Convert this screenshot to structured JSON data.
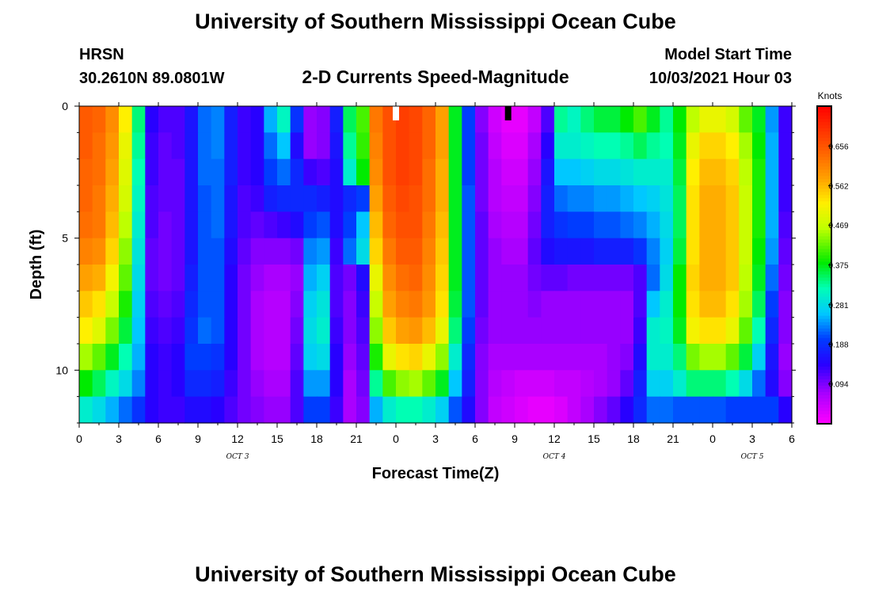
{
  "header": {
    "title": "University of Southern Mississippi Ocean Cube",
    "station": "HRSN",
    "coords": "30.2610N  89.0801W",
    "subtitle": "2-D Currents Speed-Magnitude",
    "model_start_label": "Model Start Time",
    "model_start_value": "10/03/2021 Hour 03",
    "footer_title": "University of Southern Mississippi Ocean Cube"
  },
  "chart_data": {
    "type": "heatmap",
    "xlabel": "Forecast Time(Z)",
    "ylabel": "Depth (ft)",
    "x_tick_labels": [
      "0",
      "3",
      "6",
      "9",
      "12",
      "15",
      "18",
      "21",
      "0",
      "3",
      "6",
      "9",
      "12",
      "15",
      "18",
      "21",
      "0",
      "3",
      "6"
    ],
    "x_range_hours": [
      0,
      54
    ],
    "day_labels": [
      {
        "text": "OCT 3",
        "hour": 12
      },
      {
        "text": "OCT 4",
        "hour": 36
      },
      {
        "text": "OCT 5",
        "hour": 51
      }
    ],
    "y_tick_labels": [
      "0",
      "5",
      "10"
    ],
    "y_tick_values": [
      0,
      5,
      10
    ],
    "y_range_ft": [
      0,
      12
    ],
    "y_reversed": true,
    "colorbar": {
      "units": "Knots",
      "tick_labels": [
        "0.656",
        "0.562",
        "0.469",
        "0.375",
        "0.281",
        "0.188",
        "0.094"
      ],
      "tick_values": [
        0.656,
        0.562,
        0.469,
        0.375,
        0.281,
        0.188,
        0.094
      ],
      "range": [
        0.0,
        0.75
      ]
    },
    "markers": [
      {
        "hour": 24,
        "color": "#ffffff"
      },
      {
        "hour": 32.5,
        "color": "#000000"
      }
    ],
    "time_hours": [
      0,
      1,
      2,
      3,
      4,
      5,
      6,
      7,
      8,
      9,
      10,
      11,
      12,
      13,
      14,
      15,
      16,
      17,
      18,
      19,
      20,
      21,
      22,
      23,
      24,
      25,
      26,
      27,
      28,
      29,
      30,
      31,
      32,
      33,
      34,
      35,
      36,
      37,
      38,
      39,
      40,
      41,
      42,
      43,
      44,
      45,
      46,
      47,
      48,
      49,
      50,
      51,
      52,
      53
    ],
    "depth_ft": [
      0.5,
      1.5,
      2.5,
      3.5,
      4.5,
      5.5,
      6.5,
      7.5,
      8.5,
      9.5,
      10.5,
      11.5
    ],
    "speed_knots": [
      [
        0.65,
        0.64,
        0.6,
        0.52,
        0.34,
        0.14,
        0.12,
        0.12,
        0.16,
        0.22,
        0.23,
        0.17,
        0.13,
        0.14,
        0.25,
        0.31,
        0.19,
        0.08,
        0.09,
        0.17,
        0.35,
        0.41,
        0.62,
        0.66,
        0.68,
        0.67,
        0.64,
        0.58,
        0.37,
        0.2,
        0.09,
        0.04,
        0.02,
        0.02,
        0.05,
        0.12,
        0.33,
        0.31,
        0.34,
        0.36,
        0.36,
        0.38,
        0.41,
        0.37,
        0.33,
        0.38,
        0.46,
        0.5,
        0.5,
        0.48,
        0.42,
        0.37,
        0.24,
        0.13
      ],
      [
        0.65,
        0.63,
        0.59,
        0.5,
        0.33,
        0.13,
        0.11,
        0.12,
        0.16,
        0.22,
        0.23,
        0.17,
        0.13,
        0.14,
        0.22,
        0.26,
        0.15,
        0.08,
        0.09,
        0.16,
        0.33,
        0.4,
        0.61,
        0.66,
        0.68,
        0.67,
        0.64,
        0.58,
        0.37,
        0.2,
        0.1,
        0.05,
        0.03,
        0.03,
        0.07,
        0.14,
        0.3,
        0.3,
        0.31,
        0.32,
        0.32,
        0.33,
        0.35,
        0.33,
        0.32,
        0.37,
        0.5,
        0.54,
        0.54,
        0.52,
        0.45,
        0.38,
        0.25,
        0.13
      ],
      [
        0.64,
        0.63,
        0.58,
        0.49,
        0.32,
        0.13,
        0.11,
        0.11,
        0.16,
        0.22,
        0.22,
        0.17,
        0.13,
        0.14,
        0.2,
        0.22,
        0.18,
        0.13,
        0.12,
        0.15,
        0.3,
        0.38,
        0.6,
        0.66,
        0.68,
        0.67,
        0.63,
        0.57,
        0.37,
        0.2,
        0.1,
        0.06,
        0.04,
        0.04,
        0.08,
        0.16,
        0.26,
        0.26,
        0.27,
        0.28,
        0.28,
        0.29,
        0.3,
        0.3,
        0.3,
        0.36,
        0.52,
        0.56,
        0.56,
        0.54,
        0.46,
        0.39,
        0.25,
        0.13
      ],
      [
        0.64,
        0.62,
        0.57,
        0.48,
        0.31,
        0.12,
        0.11,
        0.11,
        0.16,
        0.21,
        0.22,
        0.16,
        0.12,
        0.13,
        0.17,
        0.18,
        0.18,
        0.18,
        0.17,
        0.15,
        0.18,
        0.2,
        0.58,
        0.65,
        0.67,
        0.66,
        0.63,
        0.57,
        0.37,
        0.21,
        0.1,
        0.06,
        0.05,
        0.05,
        0.09,
        0.17,
        0.22,
        0.23,
        0.23,
        0.24,
        0.24,
        0.25,
        0.26,
        0.27,
        0.29,
        0.35,
        0.53,
        0.57,
        0.57,
        0.55,
        0.47,
        0.39,
        0.25,
        0.13
      ],
      [
        0.63,
        0.62,
        0.56,
        0.46,
        0.3,
        0.12,
        0.1,
        0.11,
        0.16,
        0.21,
        0.22,
        0.16,
        0.12,
        0.11,
        0.12,
        0.13,
        0.15,
        0.2,
        0.21,
        0.15,
        0.2,
        0.26,
        0.56,
        0.64,
        0.66,
        0.66,
        0.62,
        0.56,
        0.37,
        0.21,
        0.11,
        0.07,
        0.06,
        0.06,
        0.1,
        0.17,
        0.19,
        0.2,
        0.2,
        0.21,
        0.21,
        0.22,
        0.23,
        0.25,
        0.28,
        0.35,
        0.53,
        0.57,
        0.57,
        0.55,
        0.47,
        0.39,
        0.25,
        0.12
      ],
      [
        0.61,
        0.6,
        0.54,
        0.44,
        0.29,
        0.11,
        0.1,
        0.11,
        0.16,
        0.21,
        0.21,
        0.15,
        0.11,
        0.09,
        0.09,
        0.09,
        0.1,
        0.23,
        0.24,
        0.13,
        0.22,
        0.28,
        0.54,
        0.62,
        0.65,
        0.65,
        0.61,
        0.55,
        0.37,
        0.21,
        0.11,
        0.08,
        0.07,
        0.07,
        0.11,
        0.15,
        0.16,
        0.16,
        0.16,
        0.17,
        0.17,
        0.17,
        0.19,
        0.23,
        0.27,
        0.36,
        0.53,
        0.57,
        0.57,
        0.55,
        0.47,
        0.38,
        0.24,
        0.11
      ],
      [
        0.58,
        0.57,
        0.51,
        0.42,
        0.28,
        0.11,
        0.1,
        0.11,
        0.17,
        0.21,
        0.21,
        0.14,
        0.1,
        0.08,
        0.07,
        0.07,
        0.08,
        0.25,
        0.27,
        0.12,
        0.1,
        0.15,
        0.5,
        0.6,
        0.63,
        0.64,
        0.6,
        0.54,
        0.37,
        0.21,
        0.11,
        0.08,
        0.08,
        0.08,
        0.1,
        0.11,
        0.11,
        0.1,
        0.1,
        0.1,
        0.1,
        0.1,
        0.12,
        0.22,
        0.28,
        0.38,
        0.54,
        0.57,
        0.57,
        0.55,
        0.46,
        0.37,
        0.22,
        0.1
      ],
      [
        0.55,
        0.53,
        0.47,
        0.39,
        0.27,
        0.12,
        0.11,
        0.12,
        0.18,
        0.21,
        0.21,
        0.14,
        0.1,
        0.07,
        0.06,
        0.06,
        0.09,
        0.27,
        0.29,
        0.12,
        0.09,
        0.13,
        0.47,
        0.58,
        0.61,
        0.62,
        0.59,
        0.53,
        0.36,
        0.21,
        0.11,
        0.08,
        0.08,
        0.08,
        0.09,
        0.08,
        0.08,
        0.08,
        0.08,
        0.08,
        0.08,
        0.08,
        0.12,
        0.26,
        0.3,
        0.38,
        0.53,
        0.56,
        0.56,
        0.53,
        0.45,
        0.35,
        0.2,
        0.09
      ],
      [
        0.52,
        0.49,
        0.43,
        0.36,
        0.26,
        0.13,
        0.12,
        0.13,
        0.19,
        0.22,
        0.21,
        0.14,
        0.1,
        0.07,
        0.06,
        0.06,
        0.1,
        0.28,
        0.3,
        0.13,
        0.09,
        0.12,
        0.44,
        0.55,
        0.58,
        0.59,
        0.56,
        0.5,
        0.34,
        0.2,
        0.1,
        0.08,
        0.08,
        0.08,
        0.08,
        0.08,
        0.08,
        0.08,
        0.08,
        0.08,
        0.08,
        0.08,
        0.13,
        0.3,
        0.31,
        0.37,
        0.51,
        0.53,
        0.53,
        0.5,
        0.42,
        0.32,
        0.18,
        0.09
      ],
      [
        0.45,
        0.42,
        0.37,
        0.32,
        0.25,
        0.14,
        0.13,
        0.14,
        0.2,
        0.2,
        0.19,
        0.14,
        0.1,
        0.07,
        0.06,
        0.06,
        0.11,
        0.27,
        0.28,
        0.14,
        0.08,
        0.11,
        0.39,
        0.5,
        0.53,
        0.54,
        0.5,
        0.44,
        0.3,
        0.18,
        0.09,
        0.07,
        0.07,
        0.07,
        0.07,
        0.07,
        0.07,
        0.07,
        0.07,
        0.07,
        0.08,
        0.09,
        0.15,
        0.3,
        0.3,
        0.34,
        0.43,
        0.45,
        0.45,
        0.42,
        0.36,
        0.27,
        0.16,
        0.08
      ],
      [
        0.38,
        0.35,
        0.31,
        0.28,
        0.23,
        0.14,
        0.13,
        0.14,
        0.18,
        0.18,
        0.17,
        0.13,
        0.1,
        0.08,
        0.07,
        0.07,
        0.12,
        0.24,
        0.24,
        0.14,
        0.07,
        0.1,
        0.33,
        0.41,
        0.44,
        0.45,
        0.42,
        0.37,
        0.26,
        0.17,
        0.09,
        0.06,
        0.05,
        0.04,
        0.04,
        0.04,
        0.05,
        0.05,
        0.06,
        0.07,
        0.08,
        0.11,
        0.17,
        0.27,
        0.27,
        0.3,
        0.34,
        0.34,
        0.34,
        0.32,
        0.28,
        0.22,
        0.15,
        0.09
      ],
      [
        0.3,
        0.28,
        0.25,
        0.22,
        0.19,
        0.14,
        0.13,
        0.13,
        0.15,
        0.15,
        0.14,
        0.12,
        0.1,
        0.09,
        0.08,
        0.08,
        0.12,
        0.2,
        0.2,
        0.13,
        0.07,
        0.09,
        0.25,
        0.3,
        0.32,
        0.32,
        0.3,
        0.27,
        0.21,
        0.15,
        0.09,
        0.05,
        0.04,
        0.03,
        0.02,
        0.02,
        0.03,
        0.05,
        0.07,
        0.09,
        0.11,
        0.14,
        0.18,
        0.22,
        0.22,
        0.21,
        0.21,
        0.21,
        0.21,
        0.2,
        0.2,
        0.2,
        0.2,
        0.14
      ]
    ]
  }
}
